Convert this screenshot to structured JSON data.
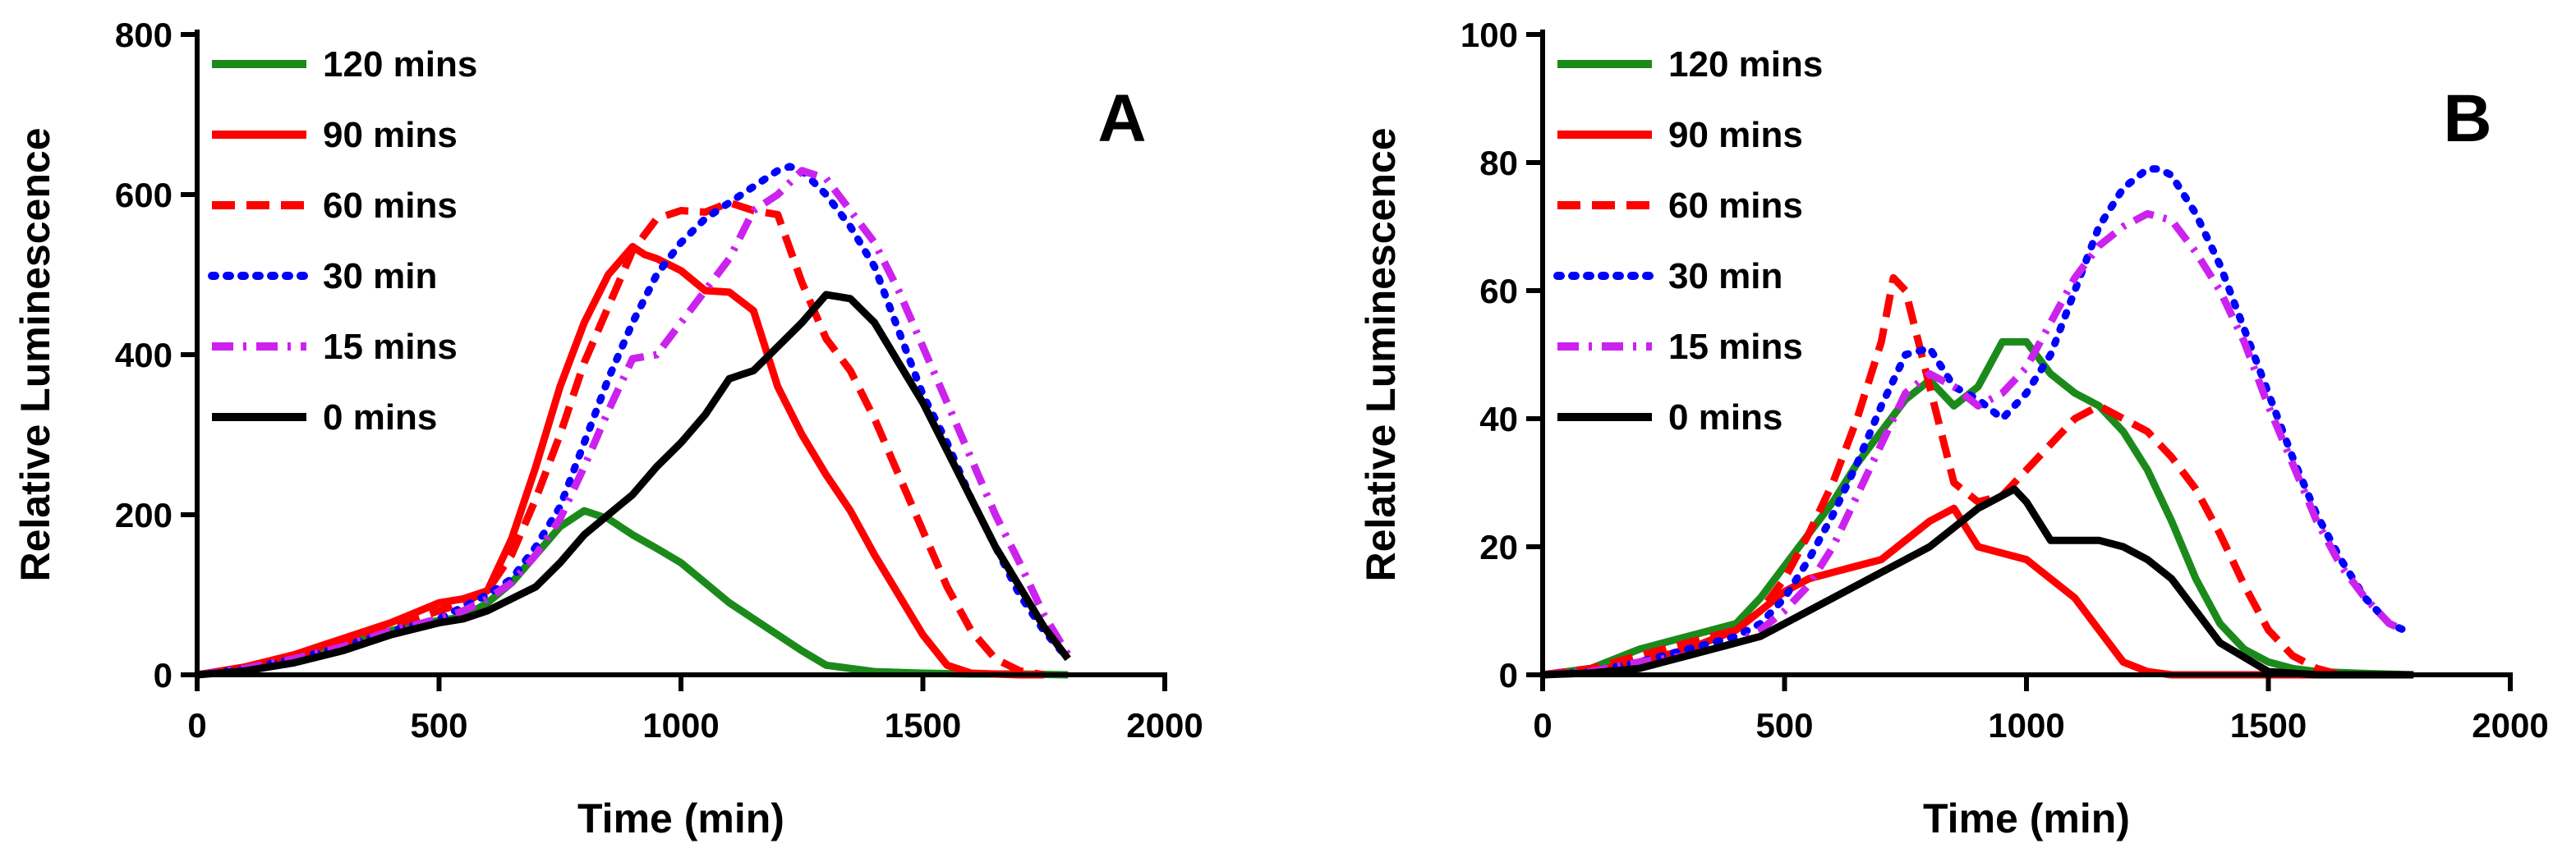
{
  "chart_data": [
    {
      "type": "line",
      "panel_label": "A",
      "xlabel": "Time (min)",
      "ylabel": "Relative Luminescence",
      "xlim": [
        0,
        2000
      ],
      "ylim": [
        0,
        800
      ],
      "xticks": [
        0,
        500,
        1000,
        1500,
        2000
      ],
      "yticks": [
        0,
        200,
        400,
        600,
        800
      ],
      "legend_position": "top-left",
      "series": [
        {
          "name": " 120 mins",
          "color": "#1b8a1b",
          "dash": "solid",
          "x": [
            0,
            100,
            200,
            300,
            400,
            500,
            550,
            600,
            650,
            700,
            750,
            800,
            850,
            900,
            950,
            1000,
            1100,
            1200,
            1250,
            1300,
            1400,
            1500,
            1600,
            1700,
            1800
          ],
          "y": [
            0,
            8,
            22,
            38,
            55,
            68,
            72,
            90,
            115,
            150,
            185,
            205,
            195,
            175,
            158,
            140,
            90,
            50,
            30,
            12,
            4,
            2,
            1,
            1,
            0
          ]
        },
        {
          "name": "90 mins",
          "color": "#ff0000",
          "dash": "solid",
          "x": [
            0,
            100,
            200,
            300,
            400,
            500,
            550,
            600,
            650,
            700,
            750,
            800,
            850,
            900,
            925,
            950,
            1000,
            1050,
            1100,
            1150,
            1200,
            1250,
            1300,
            1350,
            1400,
            1450,
            1500,
            1550,
            1600,
            1650,
            1700,
            1750
          ],
          "y": [
            0,
            10,
            25,
            45,
            65,
            90,
            95,
            105,
            170,
            260,
            360,
            440,
            500,
            535,
            525,
            520,
            505,
            480,
            478,
            455,
            360,
            300,
            250,
            205,
            150,
            100,
            50,
            12,
            2,
            1,
            0,
            0
          ]
        },
        {
          "name": "60 mins",
          "color": "#ff0000",
          "dash": "dash",
          "x": [
            0,
            100,
            200,
            300,
            400,
            500,
            550,
            600,
            650,
            700,
            750,
            800,
            850,
            900,
            950,
            1000,
            1050,
            1100,
            1150,
            1200,
            1250,
            1300,
            1350,
            1400,
            1450,
            1500,
            1550,
            1600,
            1650,
            1700,
            1750
          ],
          "y": [
            0,
            8,
            22,
            40,
            60,
            80,
            90,
            105,
            150,
            220,
            300,
            390,
            460,
            530,
            570,
            580,
            578,
            590,
            580,
            575,
            490,
            420,
            380,
            320,
            250,
            180,
            110,
            55,
            20,
            5,
            0
          ]
        },
        {
          "name": "30 min",
          "color": "#0000ff",
          "dash": "dot",
          "x": [
            0,
            100,
            200,
            300,
            400,
            500,
            550,
            600,
            650,
            700,
            750,
            800,
            850,
            900,
            950,
            1000,
            1050,
            1100,
            1150,
            1200,
            1225,
            1250,
            1300,
            1350,
            1400,
            1450,
            1500,
            1550,
            1600,
            1650,
            1700,
            1750,
            1800
          ],
          "y": [
            0,
            8,
            20,
            35,
            55,
            70,
            85,
            100,
            120,
            160,
            210,
            290,
            370,
            440,
            500,
            540,
            570,
            590,
            610,
            630,
            635,
            630,
            600,
            560,
            510,
            430,
            350,
            290,
            220,
            160,
            100,
            55,
            20
          ]
        },
        {
          "name": "15 mins",
          "color": "#cc22ee",
          "dash": "dashdot",
          "x": [
            0,
            100,
            200,
            300,
            400,
            500,
            550,
            600,
            650,
            700,
            750,
            800,
            850,
            900,
            950,
            1000,
            1050,
            1100,
            1150,
            1200,
            1250,
            1300,
            1350,
            1400,
            1450,
            1500,
            1550,
            1600,
            1650,
            1700,
            1750,
            1800
          ],
          "y": [
            0,
            8,
            20,
            35,
            55,
            70,
            80,
            95,
            115,
            150,
            195,
            260,
            330,
            395,
            400,
            440,
            480,
            520,
            580,
            600,
            630,
            620,
            580,
            540,
            480,
            410,
            340,
            270,
            200,
            140,
            75,
            25
          ]
        },
        {
          "name": "0 mins",
          "color": "#000000",
          "dash": "solid",
          "x": [
            0,
            100,
            200,
            300,
            400,
            500,
            550,
            600,
            650,
            700,
            750,
            800,
            850,
            900,
            950,
            1000,
            1050,
            1100,
            1125,
            1150,
            1200,
            1250,
            1300,
            1350,
            1400,
            1450,
            1500,
            1550,
            1600,
            1650,
            1700,
            1750,
            1800
          ],
          "y": [
            0,
            5,
            15,
            30,
            50,
            65,
            70,
            80,
            95,
            110,
            140,
            175,
            200,
            225,
            260,
            290,
            325,
            370,
            375,
            380,
            410,
            440,
            475,
            470,
            440,
            390,
            340,
            280,
            220,
            160,
            110,
            60,
            20
          ]
        }
      ]
    },
    {
      "type": "line",
      "panel_label": "B",
      "xlabel": "Time (min)",
      "ylabel": "Relative Luminescence",
      "xlim": [
        0,
        2000
      ],
      "ylim": [
        0,
        100
      ],
      "xticks": [
        0,
        500,
        1000,
        1500,
        2000
      ],
      "yticks": [
        0,
        20,
        40,
        60,
        80,
        100
      ],
      "legend_position": "top-left",
      "series": [
        {
          "name": " 120 mins",
          "color": "#1b8a1b",
          "dash": "solid",
          "x": [
            0,
            100,
            200,
            300,
            400,
            450,
            500,
            550,
            600,
            650,
            700,
            750,
            800,
            850,
            900,
            950,
            1000,
            1050,
            1100,
            1150,
            1200,
            1250,
            1300,
            1350,
            1400,
            1450,
            1500,
            1550,
            1600,
            1700,
            1800
          ],
          "y": [
            0,
            1,
            4,
            6,
            8,
            12,
            17,
            22,
            27,
            33,
            38,
            43,
            46,
            42,
            45,
            52,
            52,
            47,
            44,
            42,
            38,
            32,
            24,
            15,
            8,
            4,
            2,
            1,
            0.5,
            0.2,
            0
          ]
        },
        {
          "name": "90 mins",
          "color": "#ff0000",
          "dash": "solid",
          "x": [
            0,
            100,
            200,
            300,
            400,
            450,
            500,
            550,
            600,
            650,
            700,
            750,
            800,
            850,
            900,
            950,
            1000,
            1050,
            1100,
            1150,
            1200,
            1250,
            1300,
            1400,
            1500,
            1600,
            1700
          ],
          "y": [
            0,
            0.5,
            2,
            4,
            7,
            10,
            13,
            15,
            16,
            17,
            18,
            21,
            24,
            26,
            20,
            19,
            18,
            15,
            12,
            7,
            2,
            0.5,
            0,
            0,
            0,
            0,
            0
          ]
        },
        {
          "name": "60 mins",
          "color": "#ff0000",
          "dash": "dash",
          "x": [
            0,
            100,
            200,
            300,
            400,
            450,
            500,
            550,
            600,
            650,
            700,
            725,
            750,
            800,
            850,
            900,
            950,
            1000,
            1050,
            1100,
            1150,
            1200,
            1250,
            1300,
            1350,
            1400,
            1450,
            1500,
            1550,
            1600,
            1650
          ],
          "y": [
            0,
            1,
            3,
            5,
            7,
            10,
            15,
            22,
            30,
            40,
            52,
            62,
            60,
            45,
            30,
            27,
            28,
            32,
            36,
            40,
            42,
            40,
            38,
            34,
            29,
            22,
            14,
            7,
            3,
            1,
            0
          ]
        },
        {
          "name": "30 min",
          "color": "#0000ff",
          "dash": "dot",
          "x": [
            0,
            100,
            200,
            300,
            400,
            450,
            500,
            550,
            600,
            650,
            700,
            750,
            800,
            850,
            900,
            950,
            1000,
            1050,
            1100,
            1150,
            1200,
            1250,
            1275,
            1300,
            1350,
            1400,
            1450,
            1500,
            1550,
            1600,
            1650,
            1700,
            1750,
            1780
          ],
          "y": [
            0,
            0.5,
            2,
            4,
            6,
            8,
            12,
            18,
            25,
            33,
            42,
            50,
            51,
            45,
            43,
            40,
            44,
            50,
            60,
            70,
            76,
            79,
            79,
            78,
            72,
            64,
            54,
            44,
            34,
            25,
            18,
            12,
            8,
            7
          ]
        },
        {
          "name": "15 mins",
          "color": "#cc22ee",
          "dash": "dashdot",
          "x": [
            0,
            100,
            200,
            300,
            400,
            450,
            500,
            550,
            600,
            650,
            700,
            750,
            800,
            850,
            900,
            950,
            1000,
            1050,
            1100,
            1150,
            1200,
            1250,
            1300,
            1350,
            1400,
            1450,
            1500,
            1550,
            1600,
            1650,
            1700,
            1750,
            1780
          ],
          "y": [
            0,
            0.5,
            2,
            3,
            5,
            7,
            10,
            14,
            20,
            28,
            36,
            44,
            47,
            45,
            42,
            44,
            48,
            55,
            62,
            67,
            70,
            72,
            71,
            66,
            60,
            52,
            42,
            33,
            24,
            17,
            12,
            8,
            7
          ]
        },
        {
          "name": "0 mins",
          "color": "#000000",
          "dash": "solid",
          "x": [
            0,
            100,
            200,
            300,
            400,
            450,
            500,
            550,
            600,
            650,
            700,
            750,
            800,
            850,
            900,
            950,
            975,
            1000,
            1050,
            1100,
            1150,
            1200,
            1250,
            1300,
            1350,
            1400,
            1500,
            1600,
            1700,
            1800
          ],
          "y": [
            0,
            0.3,
            1,
            3,
            5,
            6,
            8,
            10,
            12,
            14,
            16,
            18,
            20,
            23,
            26,
            28,
            29,
            27,
            21,
            21,
            21,
            20,
            18,
            15,
            10,
            5,
            0.5,
            0,
            0,
            0
          ]
        }
      ]
    }
  ]
}
